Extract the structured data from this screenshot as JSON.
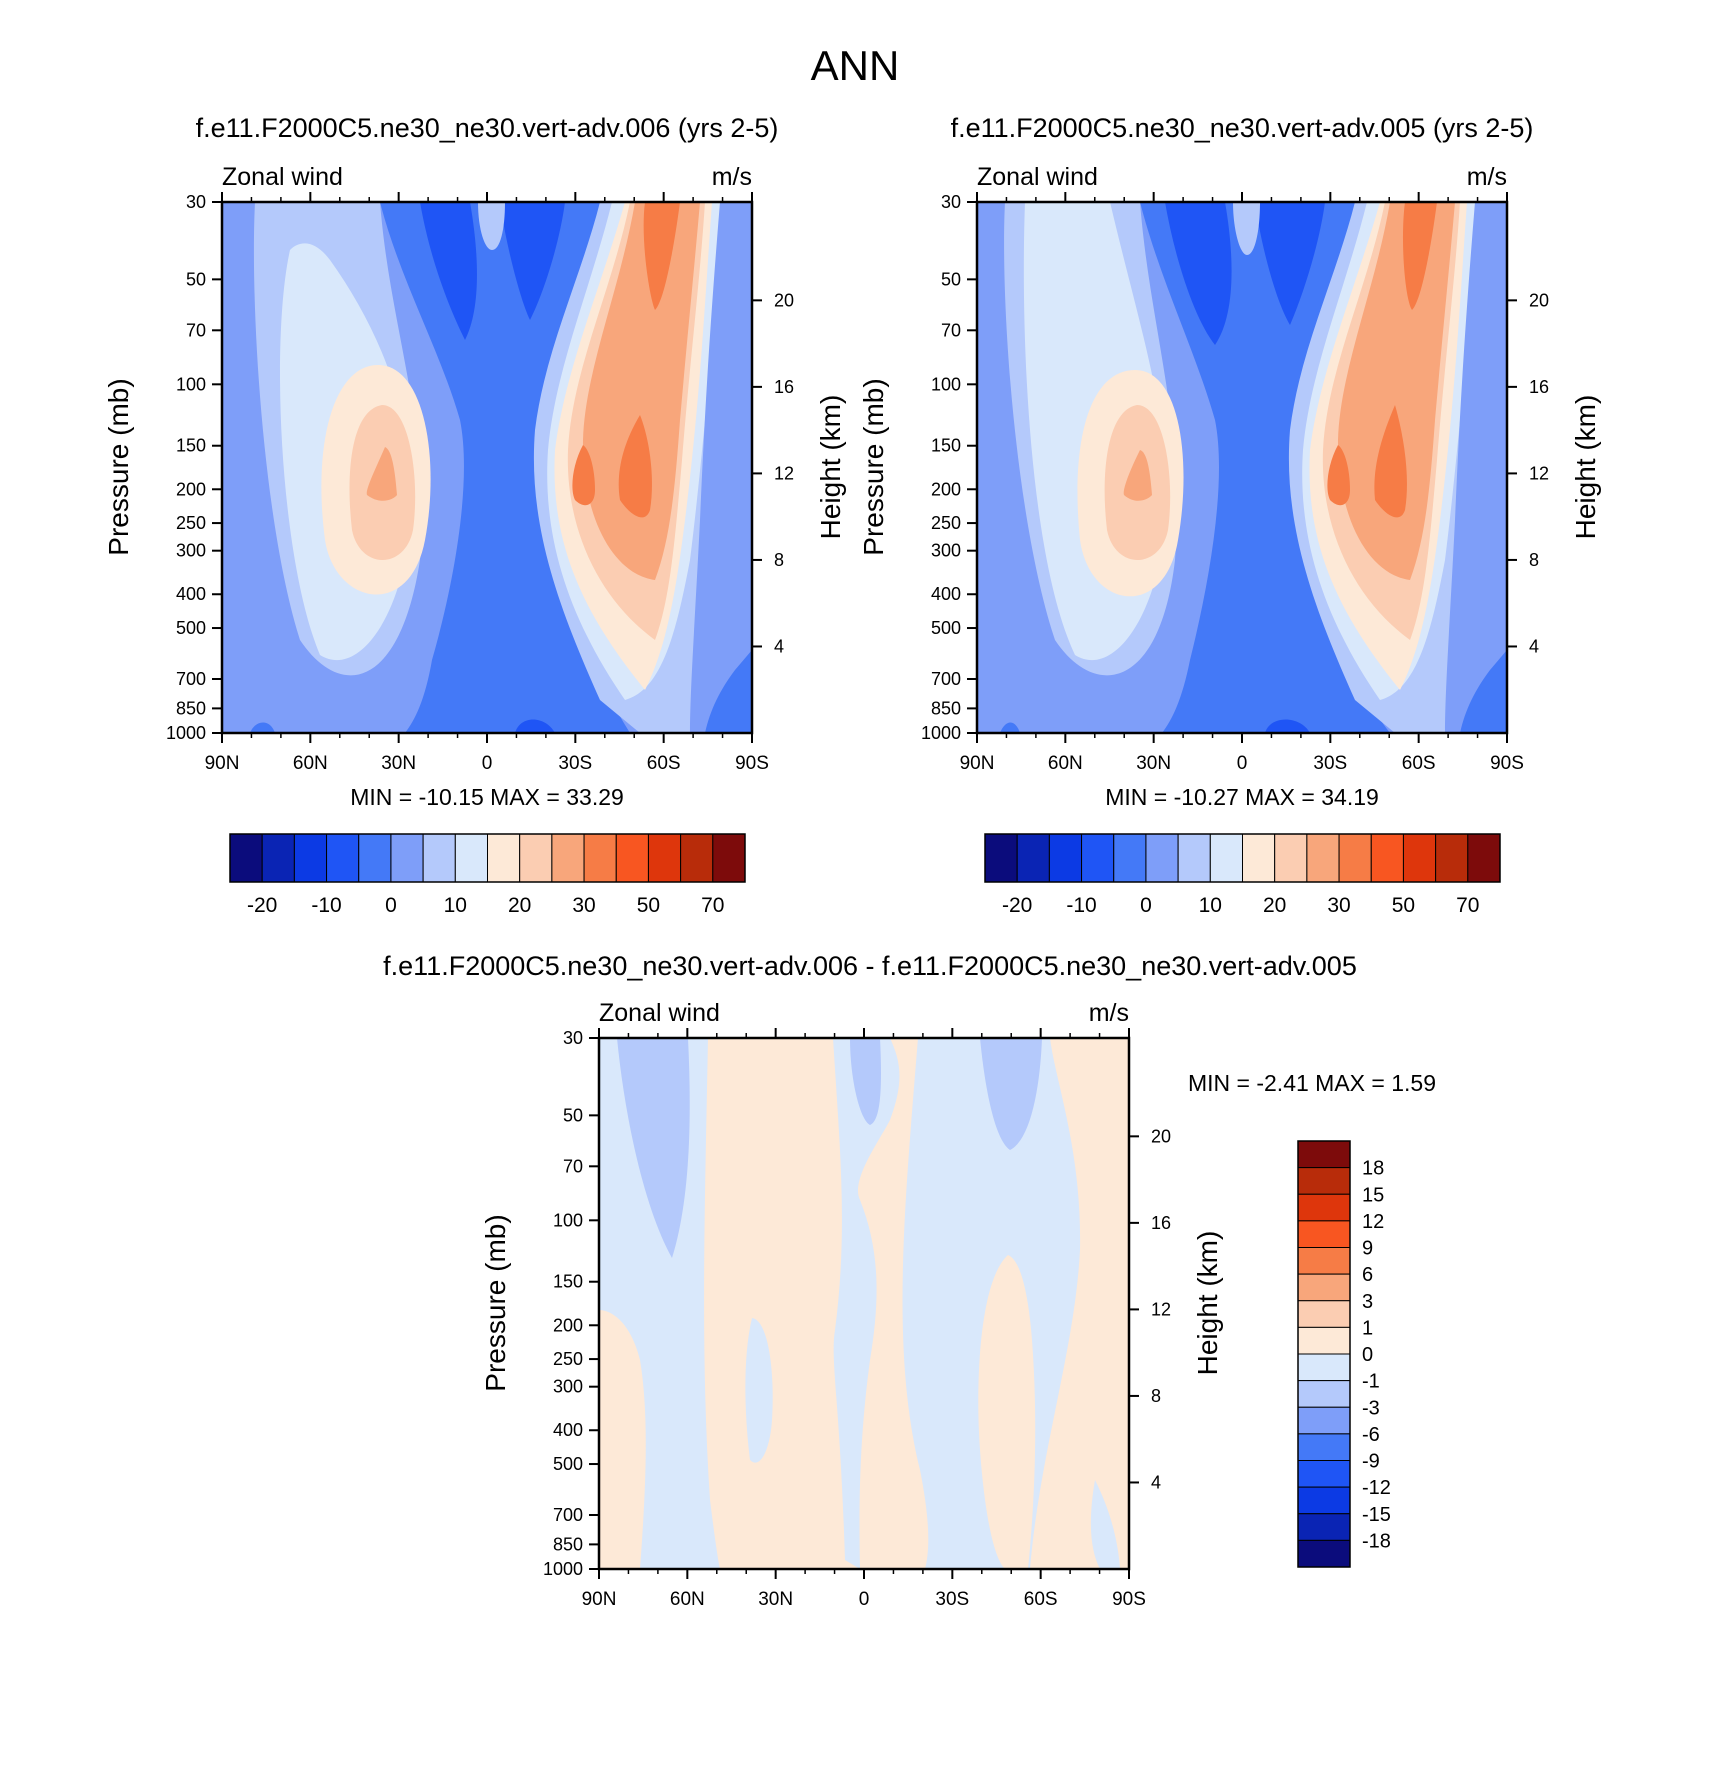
{
  "figure": {
    "title": "ANN"
  },
  "panels": [
    {
      "id": "test",
      "case_title": "f.e11.F2000C5.ne30_ne30.vert-adv.006 (yrs 2-5)",
      "left_label": "Zonal wind",
      "right_label": "m/s",
      "stats": "MIN = -10.15  MAX =  33.29"
    },
    {
      "id": "control",
      "case_title": "f.e11.F2000C5.ne30_ne30.vert-adv.005 (yrs 2-5)",
      "left_label": "Zonal wind",
      "right_label": "m/s",
      "stats": "MIN = -10.27  MAX =  34.19"
    },
    {
      "id": "difference",
      "case_title": "f.e11.F2000C5.ne30_ne30.vert-adv.006 - f.e11.F2000C5.ne30_ne30.vert-adv.005",
      "left_label": "Zonal wind",
      "right_label": "m/s",
      "stats": "MIN =  -2.41  MAX =    1.59"
    }
  ],
  "chart_data": [
    {
      "type": "heatmap",
      "subtype": "filled-contour latitude-pressure cross section",
      "title": "f.e11.F2000C5.ne30_ne30.vert-adv.006 (yrs 2-5)",
      "variable": "Zonal wind",
      "units": "m/s",
      "xlabel": "",
      "ylabel": "Pressure (mb)",
      "y2label": "Height (km)",
      "x_ticks": [
        "90N",
        "60N",
        "30N",
        "0",
        "30S",
        "60S",
        "90S"
      ],
      "x_values": [
        90,
        60,
        30,
        0,
        -30,
        -60,
        -90
      ],
      "y_ticks": [
        "30",
        "50",
        "70",
        "100",
        "150",
        "200",
        "250",
        "300",
        "400",
        "500",
        "700",
        "850",
        "1000"
      ],
      "y_values": [
        30,
        50,
        70,
        100,
        150,
        200,
        250,
        300,
        400,
        500,
        700,
        850,
        1000
      ],
      "y2_ticks": [
        "20",
        "16",
        "12",
        "8",
        "4"
      ],
      "ylim": [
        1000,
        30
      ],
      "min": -10.15,
      "max": 33.29,
      "colorbar": {
        "orientation": "horizontal",
        "levels": [
          -25,
          -20,
          -15,
          -10,
          -5,
          0,
          5,
          10,
          15,
          20,
          25,
          30,
          40,
          50,
          60,
          70
        ],
        "tick_labels": [
          "-20",
          "-10",
          "0",
          "10",
          "20",
          "30",
          "50",
          "70"
        ],
        "colors": [
          "#0b0c7c",
          "#0a24b4",
          "#0c3ae4",
          "#1f55f5",
          "#4479f7",
          "#7e9ef9",
          "#b4c9fb",
          "#d9e8fb",
          "#fde9d7",
          "#fbcdb2",
          "#f8a67b",
          "#f67c46",
          "#f85621",
          "#de360c",
          "#b82c0a",
          "#7d0b0b"
        ]
      }
    },
    {
      "type": "heatmap",
      "subtype": "filled-contour latitude-pressure cross section",
      "title": "f.e11.F2000C5.ne30_ne30.vert-adv.005 (yrs 2-5)",
      "variable": "Zonal wind",
      "units": "m/s",
      "xlabel": "",
      "ylabel": "Pressure (mb)",
      "y2label": "Height (km)",
      "x_ticks": [
        "90N",
        "60N",
        "30N",
        "0",
        "30S",
        "60S",
        "90S"
      ],
      "x_values": [
        90,
        60,
        30,
        0,
        -30,
        -60,
        -90
      ],
      "y_ticks": [
        "30",
        "50",
        "70",
        "100",
        "150",
        "200",
        "250",
        "300",
        "400",
        "500",
        "700",
        "850",
        "1000"
      ],
      "y_values": [
        30,
        50,
        70,
        100,
        150,
        200,
        250,
        300,
        400,
        500,
        700,
        850,
        1000
      ],
      "y2_ticks": [
        "20",
        "16",
        "12",
        "8",
        "4"
      ],
      "ylim": [
        1000,
        30
      ],
      "min": -10.27,
      "max": 34.19,
      "colorbar": {
        "orientation": "horizontal",
        "levels": [
          -25,
          -20,
          -15,
          -10,
          -5,
          0,
          5,
          10,
          15,
          20,
          25,
          30,
          40,
          50,
          60,
          70
        ],
        "tick_labels": [
          "-20",
          "-10",
          "0",
          "10",
          "20",
          "30",
          "50",
          "70"
        ],
        "colors": [
          "#0b0c7c",
          "#0a24b4",
          "#0c3ae4",
          "#1f55f5",
          "#4479f7",
          "#7e9ef9",
          "#b4c9fb",
          "#d9e8fb",
          "#fde9d7",
          "#fbcdb2",
          "#f8a67b",
          "#f67c46",
          "#f85621",
          "#de360c",
          "#b82c0a",
          "#7d0b0b"
        ]
      }
    },
    {
      "type": "heatmap",
      "subtype": "filled-contour latitude-pressure difference",
      "title": "f.e11.F2000C5.ne30_ne30.vert-adv.006 - f.e11.F2000C5.ne30_ne30.vert-adv.005",
      "variable": "Zonal wind",
      "units": "m/s",
      "xlabel": "",
      "ylabel": "Pressure (mb)",
      "y2label": "Height (km)",
      "x_ticks": [
        "90N",
        "60N",
        "30N",
        "0",
        "30S",
        "60S",
        "90S"
      ],
      "x_values": [
        90,
        60,
        30,
        0,
        -30,
        -60,
        -90
      ],
      "y_ticks": [
        "30",
        "50",
        "70",
        "100",
        "150",
        "200",
        "250",
        "300",
        "400",
        "500",
        "700",
        "850",
        "1000"
      ],
      "y_values": [
        30,
        50,
        70,
        100,
        150,
        200,
        250,
        300,
        400,
        500,
        700,
        850,
        1000
      ],
      "y2_ticks": [
        "20",
        "16",
        "12",
        "8",
        "4"
      ],
      "ylim": [
        1000,
        30
      ],
      "min": -2.41,
      "max": 1.59,
      "colorbar": {
        "orientation": "vertical",
        "levels": [
          -18,
          -15,
          -12,
          -9,
          -6,
          -3,
          -1,
          0,
          1,
          3,
          6,
          9,
          12,
          15,
          18
        ],
        "tick_labels": [
          "18",
          "15",
          "12",
          "9",
          "6",
          "3",
          "1",
          "0",
          "-1",
          "-3",
          "-6",
          "-9",
          "-12",
          "-15",
          "-18"
        ],
        "colors": [
          "#7d0b0b",
          "#b82c0a",
          "#de360c",
          "#f85621",
          "#f67c46",
          "#f8a67b",
          "#fbcdb2",
          "#fde9d7",
          "#d9e8fb",
          "#b4c9fb",
          "#7e9ef9",
          "#4479f7",
          "#1f55f5",
          "#0c3ae4",
          "#0a24b4",
          "#0b0c7c"
        ]
      }
    }
  ]
}
